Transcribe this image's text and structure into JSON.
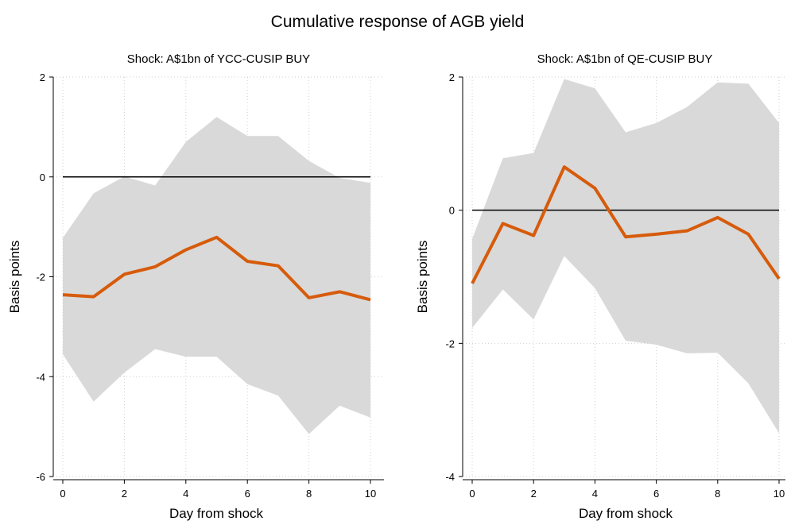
{
  "figure_title": "Cumulative response of AGB yield",
  "colors": {
    "band": "#d9d9d9",
    "line": "#d65b0b",
    "zero": "#000000",
    "grid": "#cfcfcf",
    "axis": "#000000"
  },
  "chart_data": [
    {
      "type": "line",
      "title": "Shock: A$1bn of YCC-CUSIP BUY",
      "xlabel": "Day from shock",
      "ylabel": "Basis points",
      "xlim": [
        0,
        10
      ],
      "ylim": [
        -6,
        2
      ],
      "x_ticks": [
        0,
        2,
        4,
        6,
        8,
        10
      ],
      "y_ticks": [
        -6,
        -4,
        -2,
        0,
        2
      ],
      "grid": true,
      "zero_line": 0,
      "x": [
        0,
        1,
        2,
        3,
        4,
        5,
        6,
        7,
        8,
        9,
        10
      ],
      "series": [
        {
          "values": [
            -2.36,
            -2.4,
            -1.95,
            -1.8,
            -1.46,
            -1.21,
            -1.69,
            -1.78,
            -2.42,
            -2.3,
            -2.46
          ]
        }
      ],
      "band": {
        "lower": [
          -3.55,
          -4.5,
          -3.92,
          -3.45,
          -3.6,
          -3.6,
          -4.15,
          -4.38,
          -5.15,
          -4.58,
          -4.82
        ],
        "upper": [
          -1.22,
          -0.33,
          0.01,
          -0.17,
          0.7,
          1.2,
          0.82,
          0.82,
          0.32,
          -0.02,
          -0.12
        ]
      }
    },
    {
      "type": "line",
      "title": "Shock: A$1bn of QE-CUSIP BUY",
      "xlabel": "Day from shock",
      "ylabel": "Basis points",
      "xlim": [
        0,
        10
      ],
      "ylim": [
        -4,
        2
      ],
      "x_ticks": [
        0,
        2,
        4,
        6,
        8,
        10
      ],
      "y_ticks": [
        -4,
        -2,
        0,
        2
      ],
      "grid": true,
      "zero_line": 0,
      "x": [
        0,
        1,
        2,
        3,
        4,
        5,
        6,
        7,
        8,
        9,
        10
      ],
      "series": [
        {
          "values": [
            -1.1,
            -0.2,
            -0.38,
            0.65,
            0.33,
            -0.4,
            -0.36,
            -0.31,
            -0.11,
            -0.36,
            -1.03
          ]
        }
      ],
      "band": {
        "lower": [
          -1.77,
          -1.19,
          -1.64,
          -0.69,
          -1.17,
          -1.96,
          -2.02,
          -2.15,
          -2.14,
          -2.6,
          -3.35
        ],
        "upper": [
          -0.43,
          0.78,
          0.86,
          1.97,
          1.83,
          1.17,
          1.31,
          1.55,
          1.92,
          1.9,
          1.31
        ]
      }
    }
  ]
}
